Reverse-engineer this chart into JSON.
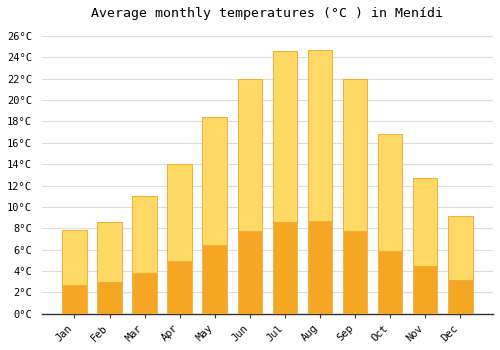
{
  "months": [
    "Jan",
    "Feb",
    "Mar",
    "Apr",
    "May",
    "Jun",
    "Jul",
    "Aug",
    "Sep",
    "Oct",
    "Nov",
    "Dec"
  ],
  "values": [
    7.8,
    8.6,
    11.0,
    14.0,
    18.4,
    22.0,
    24.6,
    24.7,
    22.0,
    16.8,
    12.7,
    9.1
  ],
  "title": "Average monthly temperatures (°C ) in Menídi",
  "ylim": [
    0,
    27
  ],
  "yticks": [
    0,
    2,
    4,
    6,
    8,
    10,
    12,
    14,
    16,
    18,
    20,
    22,
    24,
    26
  ],
  "background_color": "#ffffff",
  "grid_color": "#dddddd",
  "title_fontsize": 9.5,
  "tick_fontsize": 7.5,
  "bar_color_bottom": "#F5A623",
  "bar_color_top": "#FFD966",
  "bar_edge_color": "#F0A020"
}
